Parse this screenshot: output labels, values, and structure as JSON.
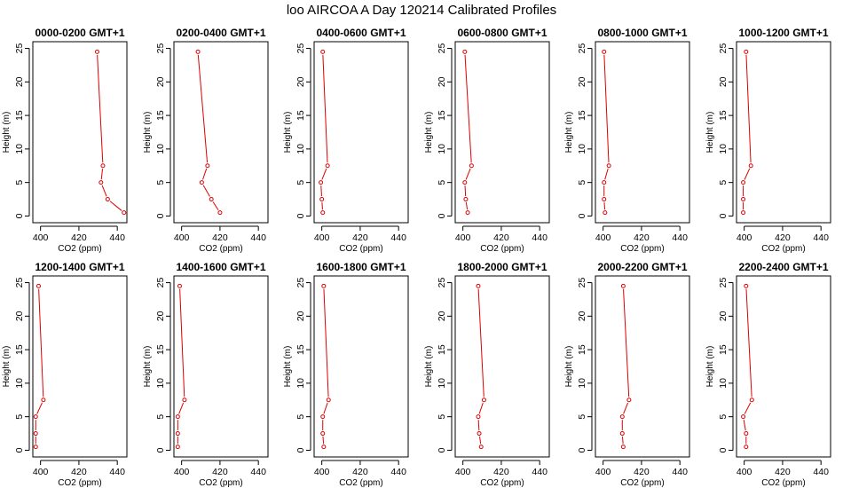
{
  "figure": {
    "title": "loo AIRCOA A  Day 120214  Calibrated Profiles"
  },
  "colors": {
    "series": "#dd0000",
    "axis": "#000000"
  },
  "chart_data": [
    {
      "type": "line",
      "title": "0000-0200 GMT+1",
      "xlabel": "CO2 (ppm)",
      "ylabel": "Height (m)",
      "xlim": [
        396,
        445
      ],
      "ylim": [
        -1,
        26
      ],
      "xticks": [
        400,
        420,
        440
      ],
      "yticks": [
        0,
        5,
        10,
        15,
        20,
        25
      ],
      "x": [
        443.5,
        435.0,
        431.5,
        432.5,
        429.5
      ],
      "y": [
        0.5,
        2.5,
        5,
        7.5,
        24.5
      ]
    },
    {
      "type": "line",
      "title": "0200-0400 GMT+1",
      "xlabel": "CO2 (ppm)",
      "ylabel": "Height (m)",
      "xlim": [
        396,
        445
      ],
      "ylim": [
        -1,
        26
      ],
      "xticks": [
        400,
        420,
        440
      ],
      "yticks": [
        0,
        5,
        10,
        15,
        20,
        25
      ],
      "x": [
        420.0,
        415.5,
        410.5,
        413.5,
        408.5
      ],
      "y": [
        0.5,
        2.5,
        5,
        7.5,
        24.5
      ]
    },
    {
      "type": "line",
      "title": "0400-0600 GMT+1",
      "xlabel": "CO2 (ppm)",
      "ylabel": "Height (m)",
      "xlim": [
        396,
        445
      ],
      "ylim": [
        -1,
        26
      ],
      "xticks": [
        400,
        420,
        440
      ],
      "yticks": [
        0,
        5,
        10,
        15,
        20,
        25
      ],
      "x": [
        400.5,
        400.0,
        399.5,
        403.0,
        400.5
      ],
      "y": [
        0.5,
        2.5,
        5,
        7.5,
        24.5
      ]
    },
    {
      "type": "line",
      "title": "0600-0800 GMT+1",
      "xlabel": "CO2 (ppm)",
      "ylabel": "Height (m)",
      "xlim": [
        396,
        445
      ],
      "ylim": [
        -1,
        26
      ],
      "xticks": [
        400,
        420,
        440
      ],
      "yticks": [
        0,
        5,
        10,
        15,
        20,
        25
      ],
      "x": [
        402.5,
        401.5,
        401.0,
        404.5,
        401.0
      ],
      "y": [
        0.5,
        2.5,
        5,
        7.5,
        24.5
      ]
    },
    {
      "type": "line",
      "title": "0800-1000 GMT+1",
      "xlabel": "CO2 (ppm)",
      "ylabel": "Height (m)",
      "xlim": [
        396,
        445
      ],
      "ylim": [
        -1,
        26
      ],
      "xticks": [
        400,
        420,
        440
      ],
      "yticks": [
        0,
        5,
        10,
        15,
        20,
        25
      ],
      "x": [
        401.0,
        400.5,
        400.5,
        403.0,
        400.5
      ],
      "y": [
        0.5,
        2.5,
        5,
        7.5,
        24.5
      ]
    },
    {
      "type": "line",
      "title": "1000-1200 GMT+1",
      "xlabel": "CO2 (ppm)",
      "ylabel": "Height (m)",
      "xlim": [
        396,
        445
      ],
      "ylim": [
        -1,
        26
      ],
      "xticks": [
        400,
        420,
        440
      ],
      "yticks": [
        0,
        5,
        10,
        15,
        20,
        25
      ],
      "x": [
        399.5,
        399.5,
        399.5,
        403.5,
        401.0
      ],
      "y": [
        0.5,
        2.5,
        5,
        7.5,
        24.5
      ]
    },
    {
      "type": "line",
      "title": "1200-1400 GMT+1",
      "xlabel": "CO2 (ppm)",
      "ylabel": "Height (m)",
      "xlim": [
        396,
        445
      ],
      "ylim": [
        -1,
        26
      ],
      "xticks": [
        400,
        420,
        440
      ],
      "yticks": [
        0,
        5,
        10,
        15,
        20,
        25
      ],
      "x": [
        397.5,
        397.5,
        397.5,
        401.5,
        399.0
      ],
      "y": [
        0.5,
        2.5,
        5,
        7.5,
        24.5
      ]
    },
    {
      "type": "line",
      "title": "1400-1600 GMT+1",
      "xlabel": "CO2 (ppm)",
      "ylabel": "Height (m)",
      "xlim": [
        396,
        445
      ],
      "ylim": [
        -1,
        26
      ],
      "xticks": [
        400,
        420,
        440
      ],
      "yticks": [
        0,
        5,
        10,
        15,
        20,
        25
      ],
      "x": [
        398.0,
        398.0,
        398.0,
        401.5,
        399.0
      ],
      "y": [
        0.5,
        2.5,
        5,
        7.5,
        24.5
      ]
    },
    {
      "type": "line",
      "title": "1600-1800 GMT+1",
      "xlabel": "CO2 (ppm)",
      "ylabel": "Height (m)",
      "xlim": [
        396,
        445
      ],
      "ylim": [
        -1,
        26
      ],
      "xticks": [
        400,
        420,
        440
      ],
      "yticks": [
        0,
        5,
        10,
        15,
        20,
        25
      ],
      "x": [
        401.0,
        400.5,
        400.5,
        403.5,
        401.0
      ],
      "y": [
        0.5,
        2.5,
        5,
        7.5,
        24.5
      ]
    },
    {
      "type": "line",
      "title": "1800-2000 GMT+1",
      "xlabel": "CO2 (ppm)",
      "ylabel": "Height (m)",
      "xlim": [
        396,
        445
      ],
      "ylim": [
        -1,
        26
      ],
      "xticks": [
        400,
        420,
        440
      ],
      "yticks": [
        0,
        5,
        10,
        15,
        20,
        25
      ],
      "x": [
        409.5,
        408.5,
        408.0,
        411.0,
        408.0
      ],
      "y": [
        0.5,
        2.5,
        5,
        7.5,
        24.5
      ]
    },
    {
      "type": "line",
      "title": "2000-2200 GMT+1",
      "xlabel": "CO2 (ppm)",
      "ylabel": "Height (m)",
      "xlim": [
        396,
        445
      ],
      "ylim": [
        -1,
        26
      ],
      "xticks": [
        400,
        420,
        440
      ],
      "yticks": [
        0,
        5,
        10,
        15,
        20,
        25
      ],
      "x": [
        410.5,
        410.0,
        410.0,
        413.5,
        410.5
      ],
      "y": [
        0.5,
        2.5,
        5,
        7.5,
        24.5
      ]
    },
    {
      "type": "line",
      "title": "2200-2400 GMT+1",
      "xlabel": "CO2 (ppm)",
      "ylabel": "Height (m)",
      "xlim": [
        396,
        445
      ],
      "ylim": [
        -1,
        26
      ],
      "xticks": [
        400,
        420,
        440
      ],
      "yticks": [
        0,
        5,
        10,
        15,
        20,
        25
      ],
      "x": [
        401.0,
        401.0,
        399.5,
        404.0,
        401.0
      ],
      "y": [
        0.5,
        2.5,
        5,
        7.5,
        24.5
      ]
    }
  ]
}
